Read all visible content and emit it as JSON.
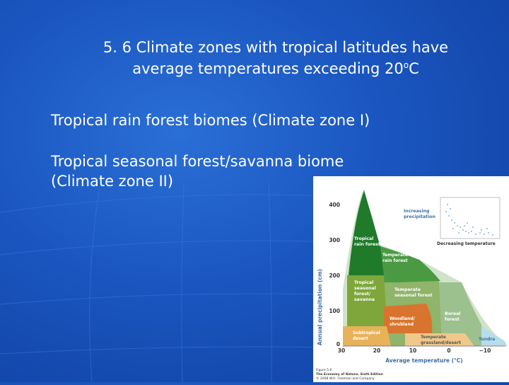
{
  "slide": {
    "title_line1": "5. 6 Climate zones with tropical latitudes have",
    "title_line2_prefix": "average temperatures exceeding 20",
    "title_degree": "o",
    "title_unit": "C",
    "bullets": [
      {
        "text": "Tropical rain forest biomes (Climate zone I)"
      },
      {
        "line1": "Tropical seasonal forest/savanna biome",
        "line2": "(Climate zone II)"
      }
    ]
  },
  "figure": {
    "ylabel": "Annual precipitation (cm)",
    "xlabel": "Average temperature (°C)",
    "yticks": [
      "400",
      "300",
      "200",
      "100",
      "0"
    ],
    "xticks": [
      "30",
      "20",
      "10",
      "0",
      "−10"
    ],
    "inset": {
      "increasing": "Increasing",
      "precipitation": "precipitation",
      "decreasing": "Decreasing temperature"
    },
    "biomes": {
      "tropical_rain_forest": [
        "Tropical",
        "rain forest"
      ],
      "temperate_rain_forest": [
        "Temperate",
        "rain forest"
      ],
      "tropical_seasonal": [
        "Tropical",
        "seasonal",
        "forest/",
        "savanna"
      ],
      "temperate_seasonal": [
        "Temperate",
        "seasonal forest"
      ],
      "boreal": [
        "Boreal",
        "forest"
      ],
      "woodland": [
        "Woodland/",
        "shrubland"
      ],
      "subtropical_desert": [
        "Subtropical",
        "desert"
      ],
      "temperate_grassland": [
        "Temperate",
        "grassland/desert"
      ],
      "tundra": "Tundra"
    },
    "caption": [
      "Figure 5.6",
      "The Economy of Nature, Sixth Edition",
      "© 2008 W.H. Freeman and Company"
    ],
    "colors": {
      "tropical_rain_forest": "#1f7a2a",
      "temperate_rain_forest": "#4a9a44",
      "tropical_seasonal": "#7ea63a",
      "temperate_seasonal": "#8fb46a",
      "boreal": "#9cc08e",
      "woodland": "#d8742e",
      "subtropical_desert": "#e8b25a",
      "temperate_grassland": "#f0c88a",
      "tundra": "#b8dcea"
    }
  }
}
